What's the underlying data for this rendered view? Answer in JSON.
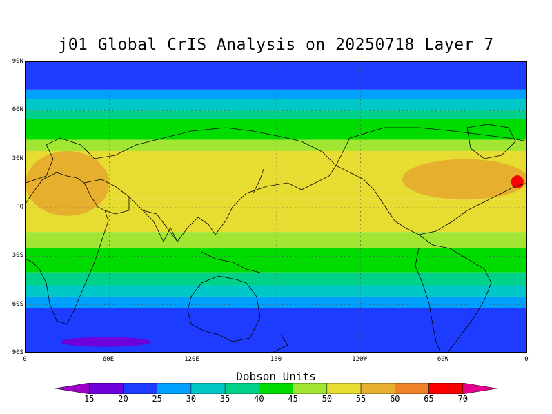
{
  "title": "j01 Global CrIS Analysis on 20250718 Layer 7",
  "lat_labels": [
    "90N",
    "60N",
    "30N",
    "EQ",
    "30S",
    "60S",
    "90S"
  ],
  "lon_labels": [
    "0",
    "60E",
    "120E",
    "180",
    "120W",
    "60W",
    "0"
  ],
  "colorbar": {
    "title": "Dobson Units",
    "ticks": [
      "15",
      "20",
      "25",
      "30",
      "35",
      "40",
      "45",
      "50",
      "55",
      "60",
      "65",
      "70"
    ],
    "colors": [
      "#a000c8",
      "#6e00dc",
      "#1e3cff",
      "#00a0ff",
      "#00c8c8",
      "#00d28c",
      "#00dc00",
      "#a0e632",
      "#e6dc32",
      "#e6af2d",
      "#f08228",
      "#fa0000",
      "#e6008c"
    ]
  },
  "map": {
    "projection": "cylindrical equidistant",
    "lon_range": [
      0,
      360
    ],
    "lat_range": [
      -90,
      90
    ],
    "field": "total ozone column (Dobson Units)",
    "zonal_bands": [
      {
        "lat": [
          73,
          90
        ],
        "value": 22
      },
      {
        "lat": [
          67,
          73
        ],
        "value": 28
      },
      {
        "lat": [
          60,
          67
        ],
        "value": 33
      },
      {
        "lat": [
          55,
          60
        ],
        "value": 38
      },
      {
        "lat": [
          42,
          55
        ],
        "value": 42
      },
      {
        "lat": [
          35,
          42
        ],
        "value": 48
      },
      {
        "lat": [
          5,
          35
        ],
        "value": 53
      },
      {
        "lat": [
          -15,
          5
        ],
        "value": 52
      },
      {
        "lat": [
          -25,
          -15
        ],
        "value": 48
      },
      {
        "lat": [
          -40,
          -25
        ],
        "value": 42
      },
      {
        "lat": [
          -48,
          -40
        ],
        "value": 36
      },
      {
        "lat": [
          -55,
          -48
        ],
        "value": 32
      },
      {
        "lat": [
          -62,
          -55
        ],
        "value": 27
      },
      {
        "lat": [
          -90,
          -62
        ],
        "value": 22
      }
    ],
    "features": [
      {
        "name": "north-africa-arabia high",
        "lon": [
          0,
          60
        ],
        "lat": [
          -5,
          35
        ],
        "value": 58
      },
      {
        "name": "caribbean-atlantic high",
        "lon": [
          270,
          360
        ],
        "lat": [
          5,
          30
        ],
        "value": 58
      },
      {
        "name": "west-africa maximum",
        "lon": [
          348,
          357
        ],
        "lat": [
          12,
          20
        ],
        "value": 67
      },
      {
        "name": "antarctic minimum",
        "lon": [
          25,
          90
        ],
        "lat": [
          -86,
          -80
        ],
        "value": 17
      }
    ]
  }
}
